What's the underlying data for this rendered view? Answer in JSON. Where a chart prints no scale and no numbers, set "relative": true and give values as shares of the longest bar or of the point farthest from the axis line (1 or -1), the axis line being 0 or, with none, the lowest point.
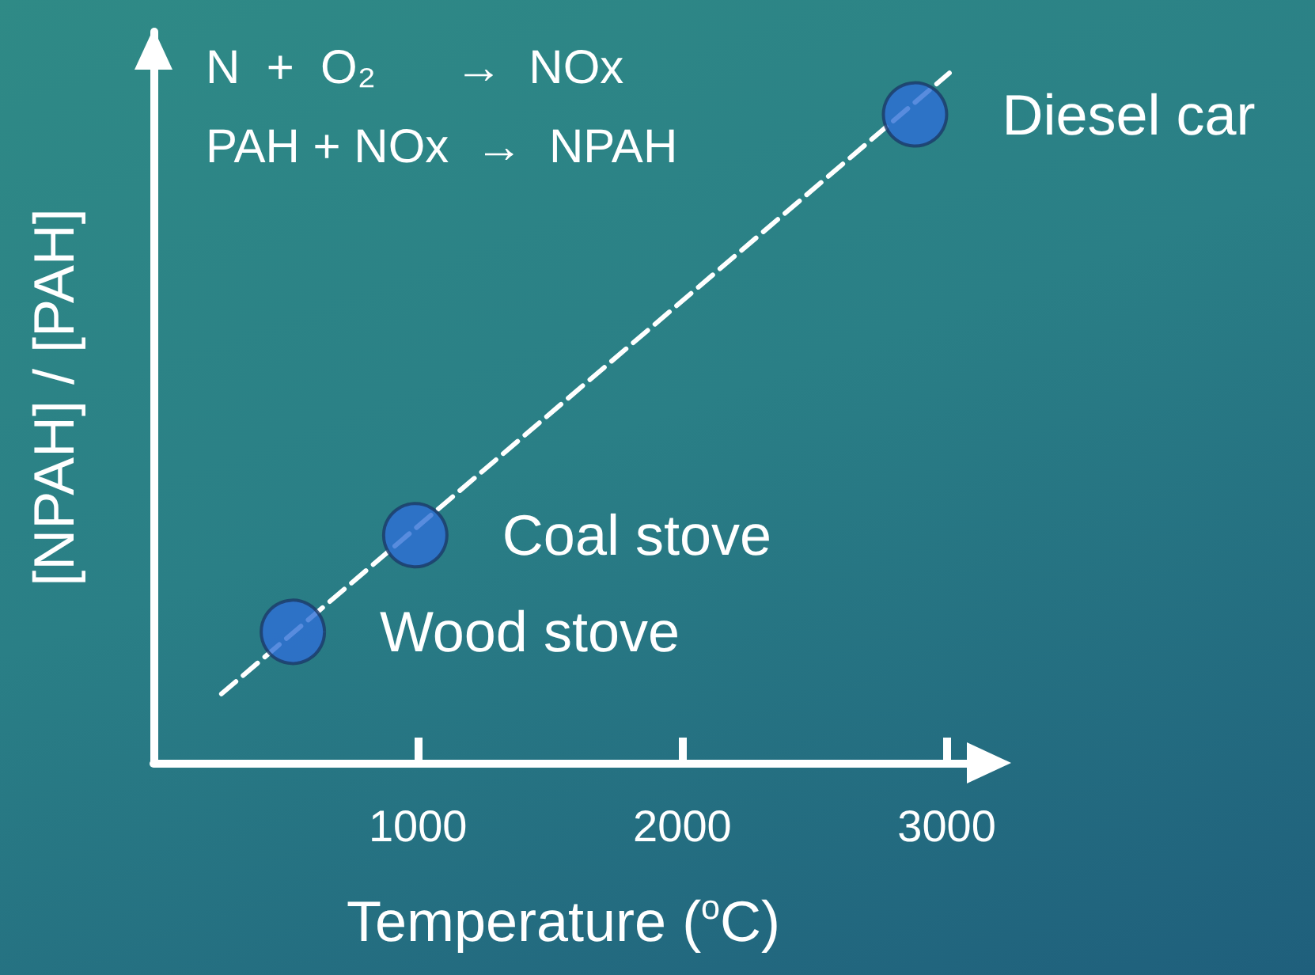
{
  "chart_data": {
    "type": "scatter",
    "relative": true,
    "xlabel": "Temperature ($^{o}$C)",
    "ylabel": "[NPAH] / [PAH]",
    "xlim": [
      0,
      3100
    ],
    "xticks": [
      1000,
      2000,
      3000
    ],
    "tick_labels": "x",
    "grid": false,
    "legend": false,
    "marker": "circle",
    "series": [
      {
        "color": "#2e6fd6",
        "x": [
          527,
          990,
          2880
        ],
        "values": [
          0.19,
          0.33,
          0.94
        ]
      },
      {
        "type": "line",
        "color": "#ffffff",
        "line_style": "dashed",
        "marker": "none",
        "x": [
          257,
          3010
        ],
        "values": [
          0.1,
          1
        ]
      }
    ],
    "annotations": [
      "N  +  O₂      →  NOx",
      "PAH + NOx  →  NPAH",
      {
        "text": "Wood stove",
        "x": 527,
        "y": 0.19
      },
      {
        "text": "Coal stove",
        "x": 990,
        "y": 0.33
      },
      {
        "text": "Diesel car",
        "x": 2880,
        "y": 0.94
      }
    ]
  }
}
